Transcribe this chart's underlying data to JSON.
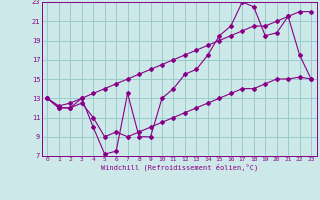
{
  "xlabel": "Windchill (Refroidissement éolien,°C)",
  "bg_color": "#cce8e8",
  "line_color": "#880088",
  "grid_color": "#99cccc",
  "xlim": [
    -0.5,
    23.5
  ],
  "ylim": [
    7,
    23
  ],
  "xticks": [
    0,
    1,
    2,
    3,
    4,
    5,
    6,
    7,
    8,
    9,
    10,
    11,
    12,
    13,
    14,
    15,
    16,
    17,
    18,
    19,
    20,
    21,
    22,
    23
  ],
  "yticks": [
    7,
    9,
    11,
    13,
    15,
    17,
    19,
    21,
    23
  ],
  "series1_x": [
    0,
    1,
    2,
    3,
    4,
    5,
    6,
    7,
    8,
    9,
    10,
    11,
    12,
    13,
    14,
    15,
    16,
    17,
    18,
    19,
    20,
    21,
    22,
    23
  ],
  "series1_y": [
    13,
    12,
    12,
    13,
    10,
    7.2,
    7.5,
    13.5,
    9,
    9,
    13,
    14,
    15.5,
    16,
    17.5,
    19.5,
    20.5,
    23,
    22.5,
    19.5,
    19.8,
    21.5,
    17.5,
    15
  ],
  "series2_x": [
    0,
    1,
    2,
    3,
    4,
    5,
    6,
    7,
    8,
    9,
    10,
    11,
    12,
    13,
    14,
    15,
    16,
    17,
    18,
    19,
    20,
    21,
    22,
    23
  ],
  "series2_y": [
    13,
    12,
    12,
    12.5,
    11,
    9,
    9.5,
    9,
    9.5,
    10,
    10.5,
    11,
    11.5,
    12,
    12.5,
    13,
    13.5,
    14,
    14,
    14.5,
    15,
    15,
    15.2,
    15
  ],
  "series3_x": [
    0,
    1,
    2,
    3,
    4,
    5,
    6,
    7,
    8,
    9,
    10,
    11,
    12,
    13,
    14,
    15,
    16,
    17,
    18,
    19,
    20,
    21,
    22,
    23
  ],
  "series3_y": [
    13,
    12.2,
    12.5,
    13,
    13.5,
    14,
    14.5,
    15,
    15.5,
    16,
    16.5,
    17,
    17.5,
    18,
    18.5,
    19,
    19.5,
    20,
    20.5,
    20.5,
    21,
    21.5,
    22,
    22
  ]
}
